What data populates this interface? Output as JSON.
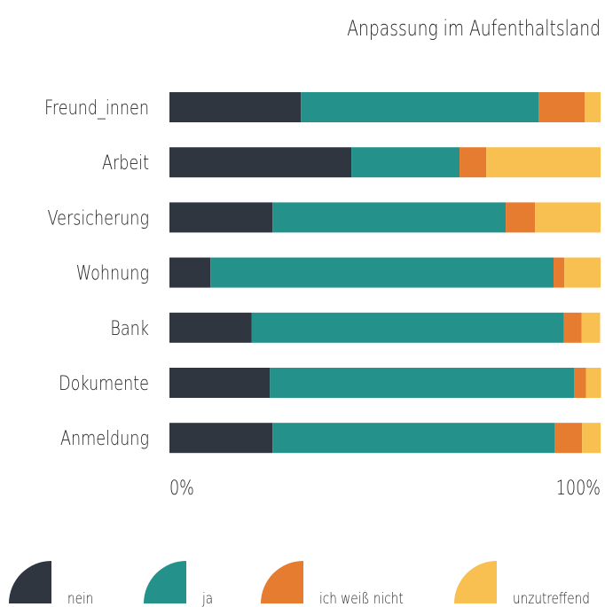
{
  "chart_data": {
    "type": "stacked_bar_horizontal",
    "title": "Anpassung im Aufenthaltsland",
    "categories": [
      "Freund_innen",
      "Arbeit",
      "Versicherung",
      "Wohnung",
      "Bank",
      "Dokumente",
      "Anmeldung"
    ],
    "series": [
      {
        "name": "nein",
        "color": "#2f3640",
        "values": [
          30.5,
          42.2,
          23.9,
          9.5,
          19.1,
          23.3,
          23.9
        ]
      },
      {
        "name": "ja",
        "color": "#24918a",
        "values": [
          55.1,
          25.1,
          54.1,
          79.6,
          72.4,
          70.6,
          65.4
        ]
      },
      {
        "name": "ich weiß nicht",
        "color": "#e57c2f",
        "values": [
          10.7,
          6.2,
          6.8,
          2.5,
          4.1,
          2.7,
          6.4
        ]
      },
      {
        "name": "unzutreffend",
        "color": "#f8c050",
        "values": [
          3.7,
          26.5,
          15.2,
          8.4,
          4.3,
          3.5,
          4.3
        ]
      }
    ],
    "xlim": [
      0,
      100
    ],
    "xticks": [
      {
        "value": 0,
        "label": "0%"
      },
      {
        "value": 100,
        "label": "100%"
      }
    ],
    "legend": "bottom"
  }
}
